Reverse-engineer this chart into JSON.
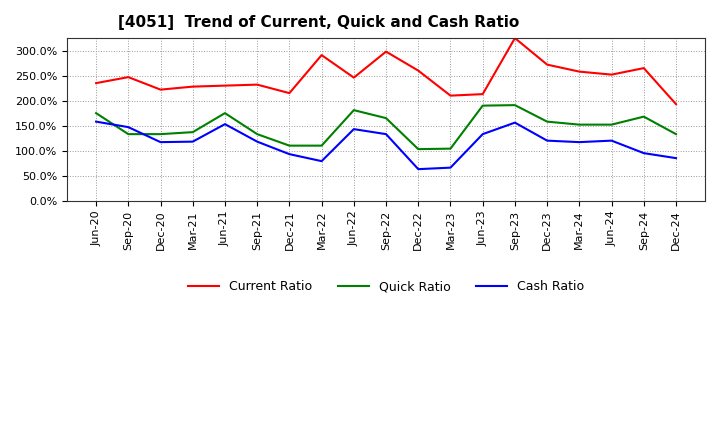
{
  "title": "[4051]  Trend of Current, Quick and Cash Ratio",
  "x_labels": [
    "Jun-20",
    "Sep-20",
    "Dec-20",
    "Mar-21",
    "Jun-21",
    "Sep-21",
    "Dec-21",
    "Mar-22",
    "Jun-22",
    "Sep-22",
    "Dec-22",
    "Mar-23",
    "Jun-23",
    "Sep-23",
    "Dec-23",
    "Mar-24",
    "Jun-24",
    "Sep-24",
    "Dec-24"
  ],
  "current_ratio": [
    235,
    247,
    222,
    228,
    230,
    232,
    215,
    291,
    246,
    298,
    260,
    210,
    213,
    325,
    272,
    258,
    252,
    265,
    193
  ],
  "quick_ratio": [
    175,
    133,
    133,
    137,
    175,
    133,
    110,
    110,
    181,
    165,
    103,
    104,
    190,
    191,
    158,
    152,
    152,
    168,
    133
  ],
  "cash_ratio": [
    158,
    147,
    117,
    118,
    153,
    118,
    93,
    79,
    143,
    133,
    63,
    66,
    133,
    156,
    120,
    117,
    120,
    95,
    85
  ],
  "current_color": "#ff0000",
  "quick_color": "#008000",
  "cash_color": "#0000ff",
  "ylim": [
    0,
    325
  ],
  "yticks": [
    0,
    50,
    100,
    150,
    200,
    250,
    300
  ],
  "background_color": "#ffffff",
  "plot_bg_color": "#ffffff",
  "grid_color": "#999999"
}
